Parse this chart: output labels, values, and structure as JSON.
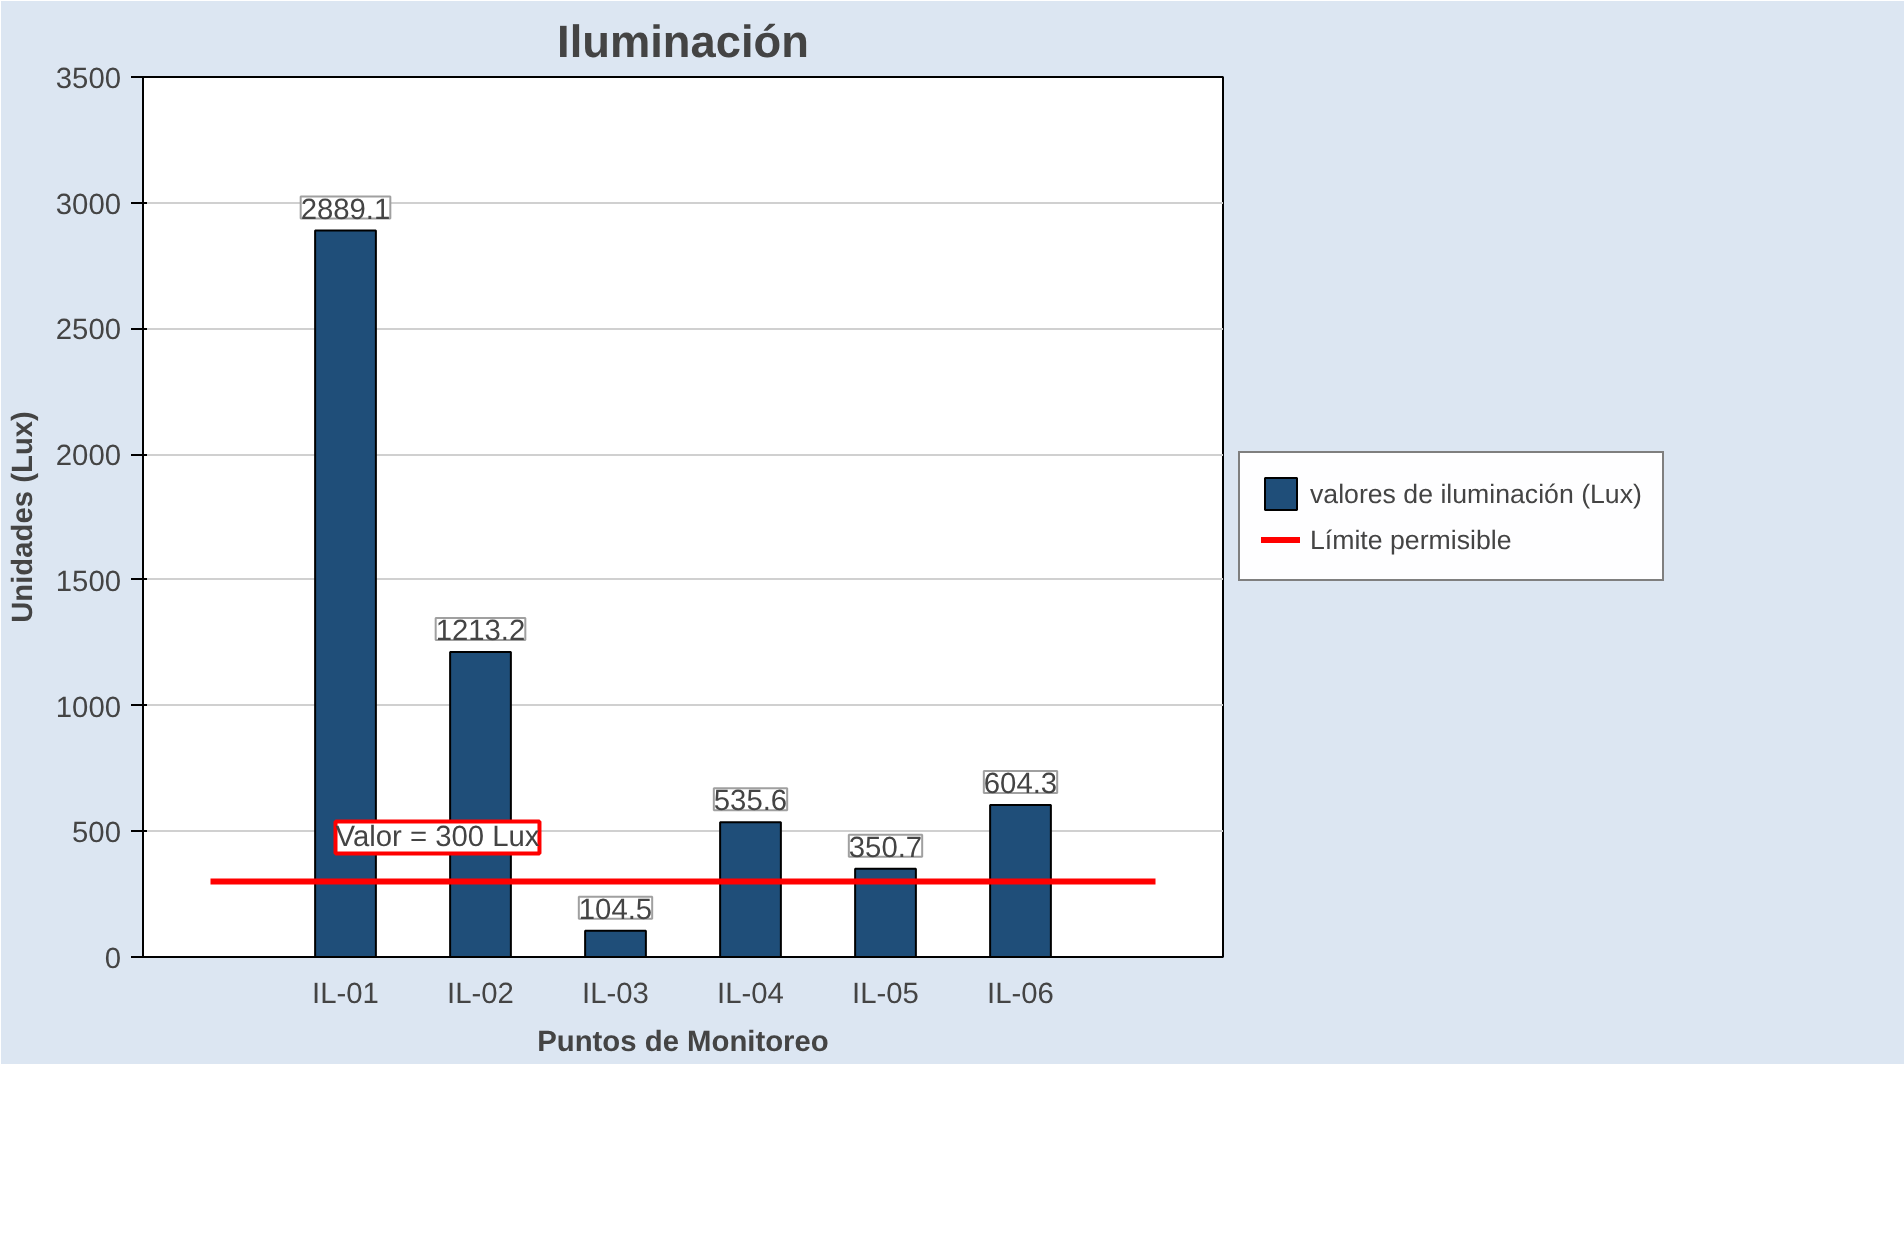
{
  "chart_data": {
    "type": "bar",
    "title": "Iluminación",
    "xlabel": "Puntos de Monitoreo",
    "ylabel": "Unidades (Lux)",
    "categories": [
      null,
      "IL-01",
      "IL-02",
      "IL-03",
      "IL-04",
      "IL-05",
      "IL-06",
      null
    ],
    "series": [
      {
        "name": "valores de iluminación (Lux)",
        "color": "#1f4e79",
        "values": [
          null,
          2889.1,
          1213.2,
          104.5,
          535.6,
          350.7,
          604.3,
          null
        ],
        "value_labels": [
          null,
          "2889.1",
          "1213.2",
          "104.5",
          "535.6",
          "350.7",
          "604.3",
          null
        ]
      },
      {
        "name": "Límite permisible",
        "type": "line",
        "color": "#ff0000",
        "values": [
          300,
          300,
          300,
          300,
          300,
          300,
          300,
          300
        ]
      }
    ],
    "ylim": [
      0,
      3500
    ],
    "yticks": [
      0,
      500,
      1000,
      1500,
      2000,
      2500,
      3000,
      3500
    ],
    "grid": "y",
    "legend": "right",
    "annotations": [
      {
        "text": "Valor = 300 Lux",
        "x": "IL-01",
        "y": 300
      }
    ]
  }
}
